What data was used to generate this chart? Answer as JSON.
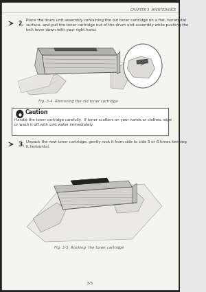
{
  "bg_color": "#e8e8e8",
  "page_color": "#f5f5f0",
  "header_text": "CHAPTER 3  MAINTENANCE",
  "step2_number": "2.",
  "step2_text": "Place the drum unit assembly containing the old toner cartridge on a flat, horizontal\nsurface, and pull the toner cartridge out of the drum unit assembly while pushing the\nlock lever down with your right hand.",
  "fig1_caption": "Fig. 3-4  Removing the old toner cartridge",
  "caution_title": "Caution",
  "caution_text": "Handle the toner cartridge carefully.  If toner scatters on your hands or clothes, wipe\nor wash it off with cold water immediately.",
  "step3_number": "3.",
  "step3_text": "Unpack the new toner cartridge, gently rock it from side to side 5 or 6 times keeping\nit horizontal.",
  "fig2_caption": "Fig. 3-5  Rocking  the toner cartridge",
  "page_number": "3-5",
  "text_color": "#3a3a3a",
  "dark_color": "#222222",
  "caption_color": "#555555",
  "line_color": "#888888",
  "border_color": "#777777"
}
